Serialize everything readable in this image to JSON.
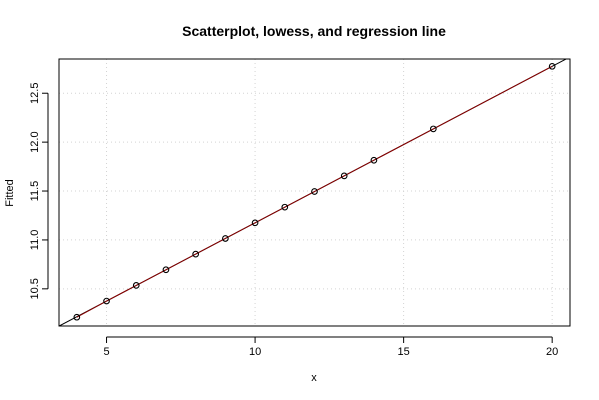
{
  "chart_data": {
    "type": "scatter",
    "title": "Scatterplot, lowess, and regression line",
    "xlabel": "x",
    "ylabel": "Fitted",
    "xlim": [
      3.4,
      20.6
    ],
    "ylim": [
      10.12,
      12.85
    ],
    "x_ticks": [
      5,
      10,
      15,
      20
    ],
    "y_ticks": [
      10.5,
      11.0,
      11.5,
      12.0,
      12.5
    ],
    "grid": true,
    "points": [
      {
        "x": 4,
        "y": 10.21
      },
      {
        "x": 5,
        "y": 10.375
      },
      {
        "x": 6,
        "y": 10.535
      },
      {
        "x": 7,
        "y": 10.695
      },
      {
        "x": 8,
        "y": 10.855
      },
      {
        "x": 9,
        "y": 11.015
      },
      {
        "x": 10,
        "y": 11.175
      },
      {
        "x": 11,
        "y": 11.335
      },
      {
        "x": 12,
        "y": 11.495
      },
      {
        "x": 13,
        "y": 11.655
      },
      {
        "x": 14,
        "y": 11.815
      },
      {
        "x": 16,
        "y": 12.135
      },
      {
        "x": 20,
        "y": 12.775
      }
    ],
    "lowess_line": {
      "color": "#8b0000",
      "x": [
        4,
        5,
        6,
        7,
        8,
        9,
        10,
        11,
        12,
        13,
        14,
        16,
        20
      ],
      "y": [
        10.21,
        10.375,
        10.535,
        10.695,
        10.855,
        11.015,
        11.175,
        11.335,
        11.495,
        11.655,
        11.815,
        12.135,
        12.775
      ]
    },
    "regression_line": {
      "color": "#000000",
      "intercept": 9.575,
      "slope": 0.16
    },
    "colors": {
      "points": "#000000",
      "grid": "#d3d3d3",
      "frame": "#000000"
    }
  }
}
